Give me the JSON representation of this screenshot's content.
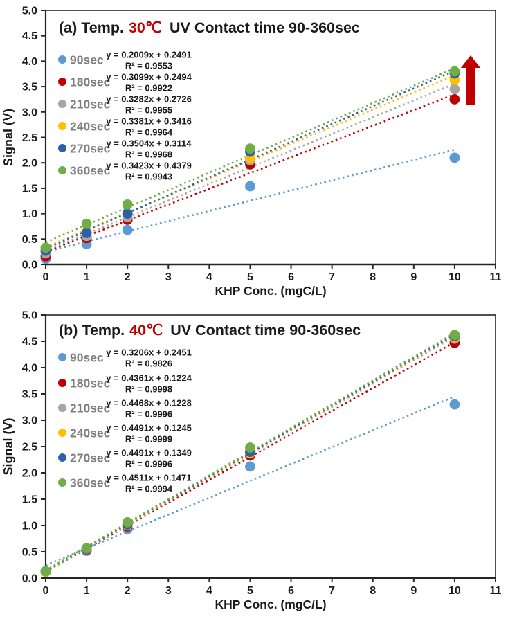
{
  "figure": {
    "background": "#ffffff",
    "axis_color": "#262626",
    "legend_label_color": "#7f7f7f",
    "equation_color": "#1a1a1a"
  },
  "chart_data": [
    {
      "type": "scatter",
      "panel": "a",
      "title_prefix": "(a) Temp.",
      "title_temp": "30℃",
      "title_temp_color": "#C00000",
      "title_suffix": "UV Contact time 90-360sec",
      "xlabel": "KHP Conc. (mgC/L)",
      "ylabel": "Signal (V)",
      "xlim": [
        0,
        11
      ],
      "ylim": [
        0,
        5
      ],
      "xtick_step": 1,
      "ytick_step": 0.5,
      "grid": false,
      "legend_position": "upper-left",
      "x": [
        0,
        1,
        2,
        5,
        10
      ],
      "series": [
        {
          "name": "90sec",
          "color": "#5B9BD5",
          "values": [
            0.11,
            0.4,
            0.68,
            1.54,
            2.1
          ],
          "slope": 0.2009,
          "intercept": 0.2491,
          "eq": "y = 0.2009x + 0.2491",
          "r2": "R² = 0.9553"
        },
        {
          "name": "180sec",
          "color": "#C00000",
          "values": [
            0.16,
            0.52,
            0.88,
            1.97,
            3.25
          ],
          "slope": 0.3099,
          "intercept": 0.2494,
          "eq": "y = 0.3099x + 0.2494",
          "r2": "R² = 0.9922"
        },
        {
          "name": "210sec",
          "color": "#A6A6A6",
          "values": [
            0.22,
            0.56,
            0.93,
            2.05,
            3.45
          ],
          "slope": 0.3282,
          "intercept": 0.2726,
          "eq": "y = 0.3282x + 0.2726",
          "r2": "R² = 0.9955"
        },
        {
          "name": "240sec",
          "color": "#FFC000",
          "values": [
            0.3,
            0.64,
            1.0,
            2.1,
            3.63
          ],
          "slope": 0.3381,
          "intercept": 0.3416,
          "eq": "y = 0.3381x + 0.3416",
          "r2": "R² = 0.9964"
        },
        {
          "name": "270sec",
          "color": "#2E5FA8",
          "values": [
            0.27,
            0.62,
            1.0,
            2.22,
            3.76
          ],
          "slope": 0.3504,
          "intercept": 0.3114,
          "eq": "y = 0.3504x + 0.3114",
          "r2": "R² = 0.9968"
        },
        {
          "name": "360sec",
          "color": "#70AD47",
          "values": [
            0.33,
            0.8,
            1.18,
            2.28,
            3.8
          ],
          "slope": 0.3423,
          "intercept": 0.4379,
          "eq": "y = 0.3423x + 0.4379",
          "r2": "R² = 0.9943"
        }
      ],
      "annotation": {
        "arrow_up": true,
        "arrow_color": "#C00000"
      }
    },
    {
      "type": "scatter",
      "panel": "b",
      "title_prefix": "(b) Temp.",
      "title_temp": "40℃",
      "title_temp_color": "#C00000",
      "title_suffix": "UV Contact time 90-360sec",
      "xlabel": "KHP Conc. (mgC/L)",
      "ylabel": "Signal (V)",
      "xlim": [
        0,
        11
      ],
      "ylim": [
        0,
        5
      ],
      "xtick_step": 1,
      "ytick_step": 0.5,
      "grid": false,
      "legend_position": "upper-left",
      "x": [
        0,
        1,
        2,
        5,
        10
      ],
      "series": [
        {
          "name": "90sec",
          "color": "#5B9BD5",
          "values": [
            0.12,
            0.52,
            0.93,
            2.12,
            3.3
          ],
          "slope": 0.3206,
          "intercept": 0.2451,
          "eq": "y = 0.3206x + 0.2451",
          "r2": "R² = 0.9826"
        },
        {
          "name": "180sec",
          "color": "#C00000",
          "values": [
            0.12,
            0.54,
            0.98,
            2.33,
            4.47
          ],
          "slope": 0.4361,
          "intercept": 0.1224,
          "eq": "y = 0.4361x + 0.1224",
          "r2": "R² = 0.9998"
        },
        {
          "name": "210sec",
          "color": "#A6A6A6",
          "values": [
            0.12,
            0.55,
            1.0,
            2.37,
            4.55
          ],
          "slope": 0.4468,
          "intercept": 0.1228,
          "eq": "y = 0.4468x + 0.1228",
          "r2": "R² = 0.9996"
        },
        {
          "name": "240sec",
          "color": "#FFC000",
          "values": [
            0.12,
            0.56,
            1.01,
            2.38,
            4.58
          ],
          "slope": 0.4491,
          "intercept": 0.1245,
          "eq": "y = 0.4491x + 0.1245",
          "r2": "R² = 0.9999"
        },
        {
          "name": "270sec",
          "color": "#2E5FA8",
          "values": [
            0.13,
            0.56,
            1.02,
            2.4,
            4.6
          ],
          "slope": 0.4491,
          "intercept": 0.1349,
          "eq": "y = 0.4491x + 0.1349",
          "r2": "R² = 0.9996"
        },
        {
          "name": "360sec",
          "color": "#70AD47",
          "values": [
            0.13,
            0.57,
            1.06,
            2.48,
            4.62
          ],
          "slope": 0.4511,
          "intercept": 0.1471,
          "eq": "y = 0.4511x + 0.1471",
          "r2": "R² = 0.9994"
        }
      ],
      "annotation": {
        "arrow_up": false,
        "arrow_color": "#C00000"
      }
    }
  ]
}
